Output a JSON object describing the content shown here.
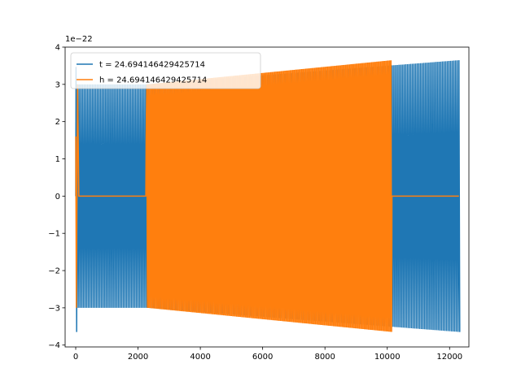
{
  "chart_data": {
    "type": "line",
    "title": "",
    "xlabel": "",
    "ylabel": "",
    "y_offset_label": "1e−22",
    "xlim": [
      -340,
      12620
    ],
    "ylim": [
      -4.05,
      4.0
    ],
    "x_ticks": [
      0,
      2000,
      4000,
      6000,
      8000,
      10000,
      12000
    ],
    "x_tick_labels": [
      "0",
      "2000",
      "4000",
      "6000",
      "8000",
      "10000",
      "12000"
    ],
    "y_ticks": [
      -4,
      -3,
      -2,
      -1,
      0,
      1,
      2,
      3,
      4
    ],
    "y_tick_labels": [
      "−4",
      "−3",
      "−2",
      "−1",
      "0",
      "1",
      "2",
      "3",
      "4"
    ],
    "grid": false,
    "legend_position": "top-left",
    "series": [
      {
        "name": "t = 24.694146429425714",
        "color": "#1f77b4",
        "description": "oscillating signal; starts with tall spike to about ±3.6, amplitude about 3.0 from 0 to 2250, then slowly growing to about 3.65 at x = 12300",
        "x_start": 0,
        "x_end": 12300,
        "amplitude_start": 3.0,
        "amplitude_end": 3.65,
        "initial_spike": 3.65,
        "cycles": 230
      },
      {
        "name": "h = 24.694146429425714",
        "color": "#ff7f0e",
        "description": "oscillating signal; zero from about 100 to 2250 (flat line), oscillating with amplitude growing from about 3.0 to 3.65 until about 10150, then flat zero to 12300",
        "x_start": 0,
        "x_end": 12300,
        "zero_segments": [
          [
            100,
            2250
          ],
          [
            10150,
            12300
          ]
        ],
        "amplitude_start": 3.0,
        "amplitude_end": 3.65,
        "cycles": 190
      }
    ]
  }
}
